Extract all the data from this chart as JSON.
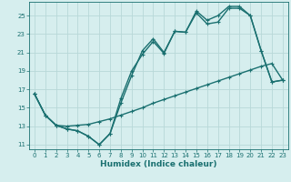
{
  "title": "",
  "xlabel": "Humidex (Indice chaleur)",
  "ylabel": "",
  "bg_color": "#d6eeee",
  "grid_color": "#b8d8d8",
  "line_color": "#1a7070",
  "xlim": [
    -0.5,
    23.5
  ],
  "ylim": [
    10.5,
    26.5
  ],
  "xticks": [
    0,
    1,
    2,
    3,
    4,
    5,
    6,
    7,
    8,
    9,
    10,
    11,
    12,
    13,
    14,
    15,
    16,
    17,
    18,
    19,
    20,
    21,
    22,
    23
  ],
  "yticks": [
    11,
    13,
    15,
    17,
    19,
    21,
    23,
    25
  ],
  "line1_x": [
    0,
    1,
    2,
    3,
    4,
    5,
    6,
    7,
    8,
    9,
    10,
    11,
    12,
    13,
    14,
    15,
    16,
    17,
    18,
    19,
    20,
    21,
    22,
    23
  ],
  "line1_y": [
    16.5,
    14.2,
    13.1,
    12.7,
    12.5,
    11.9,
    11.0,
    12.2,
    16.0,
    19.0,
    20.8,
    22.2,
    20.9,
    23.3,
    23.2,
    25.3,
    24.1,
    24.3,
    25.8,
    25.8,
    25.0,
    21.2,
    17.8,
    18.0
  ],
  "line2_x": [
    0,
    1,
    2,
    3,
    4,
    5,
    6,
    7,
    8,
    9,
    10,
    11,
    12,
    13,
    14,
    15,
    16,
    17,
    18,
    19,
    20,
    21,
    22,
    23
  ],
  "line2_y": [
    16.5,
    14.2,
    13.1,
    12.7,
    12.5,
    11.9,
    11.0,
    12.2,
    15.5,
    18.5,
    21.2,
    22.5,
    21.0,
    23.3,
    23.2,
    25.5,
    24.5,
    25.0,
    26.0,
    26.0,
    25.0,
    21.2,
    17.8,
    18.0
  ],
  "line3_x": [
    0,
    1,
    2,
    3,
    4,
    5,
    6,
    7,
    8,
    9,
    10,
    11,
    12,
    13,
    14,
    15,
    16,
    17,
    18,
    19,
    20,
    21,
    22,
    23
  ],
  "line3_y": [
    16.5,
    14.2,
    13.1,
    13.0,
    13.1,
    13.2,
    13.5,
    13.8,
    14.2,
    14.6,
    15.0,
    15.5,
    15.9,
    16.3,
    16.7,
    17.1,
    17.5,
    17.9,
    18.3,
    18.7,
    19.1,
    19.5,
    19.8,
    18.0
  ],
  "marker_size": 3.0,
  "line_width": 1.0
}
